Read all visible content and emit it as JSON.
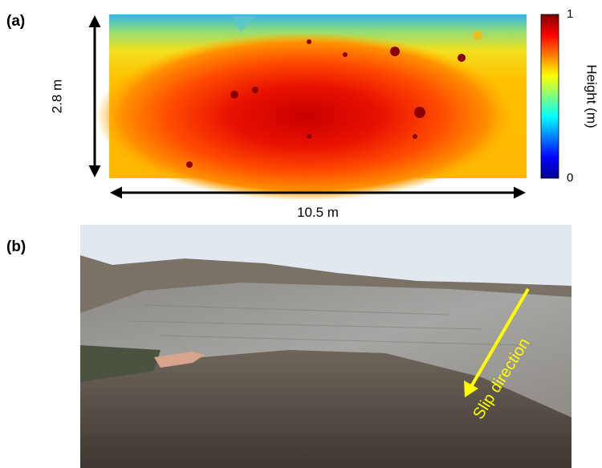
{
  "panel_a": {
    "label": "(a)",
    "height_label": "2.8 m",
    "width_label": "10.5 m",
    "colorbar": {
      "label": "Height (m)",
      "lim": [
        0,
        1
      ],
      "ticks": [
        0,
        1
      ]
    }
  },
  "panel_b": {
    "label": "(b)",
    "arrow_label": "Slip direction"
  }
}
